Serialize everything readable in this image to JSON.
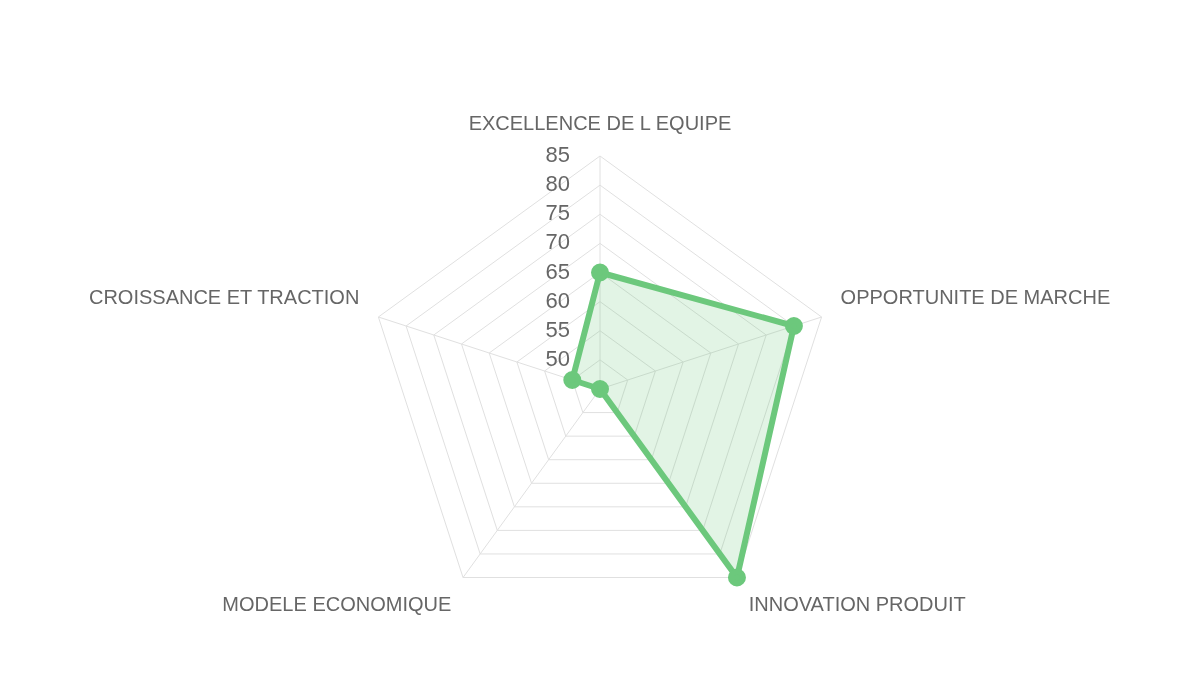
{
  "chart_data": {
    "type": "radar",
    "categories": [
      "EXCELLENCE DE L EQUIPE",
      "OPPORTUNITE DE MARCHE",
      "INNOVATION PRODUIT",
      "MODELE ECONOMIQUE",
      "CROISSANCE ET TRACTION"
    ],
    "series": [
      {
        "color": "#6cc87c",
        "values": [
          65,
          80,
          85,
          45,
          50
        ]
      }
    ],
    "ylim": [
      45,
      85
    ],
    "yticks": [
      50,
      55,
      60,
      65,
      70,
      75,
      80,
      85
    ],
    "grid": true,
    "marker": "circle"
  }
}
